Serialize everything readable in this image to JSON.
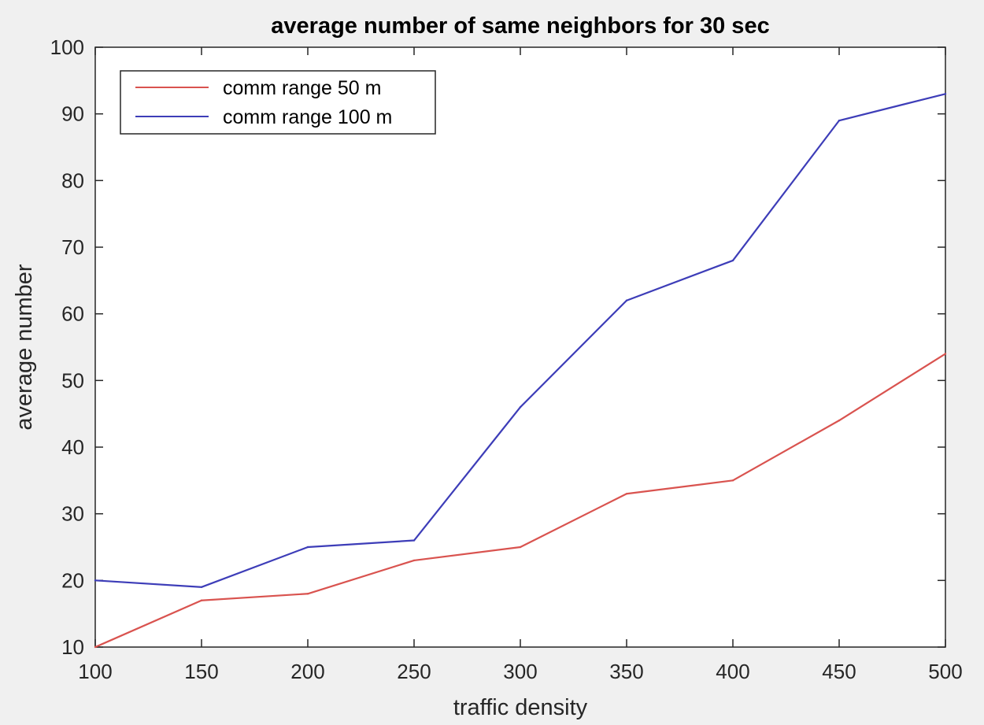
{
  "chart_data": {
    "type": "line",
    "title": "average number of same neighbors for 30 sec",
    "xlabel": "traffic density",
    "ylabel": "average number",
    "x": [
      100,
      150,
      200,
      250,
      300,
      350,
      400,
      450,
      500
    ],
    "xlim": [
      100,
      500
    ],
    "ylim": [
      10,
      100
    ],
    "xticks": [
      "100",
      "150",
      "200",
      "250",
      "300",
      "350",
      "400",
      "450",
      "500"
    ],
    "yticks": [
      "10",
      "20",
      "30",
      "40",
      "50",
      "60",
      "70",
      "80",
      "90",
      "100"
    ],
    "grid": false,
    "legend_position": "top-left",
    "series": [
      {
        "name": "comm range 50 m",
        "color": "#d9534f",
        "values": [
          10,
          17,
          18,
          23,
          25,
          33,
          35,
          44,
          54
        ]
      },
      {
        "name": "comm range 100 m",
        "color": "#3d3db8",
        "values": [
          20,
          19,
          25,
          26,
          46,
          62,
          68,
          89,
          93
        ]
      }
    ]
  }
}
